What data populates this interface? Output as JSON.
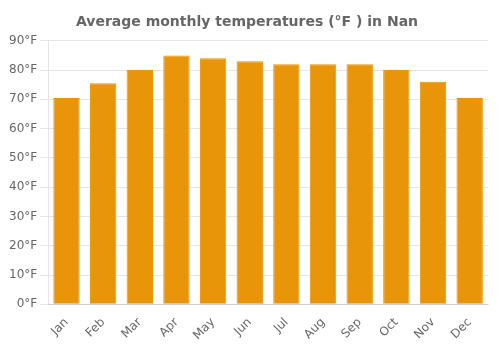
{
  "chart_data": {
    "type": "bar",
    "title": "Average monthly temperatures (°F ) in Nan",
    "categories": [
      "Jan",
      "Feb",
      "Mar",
      "Apr",
      "May",
      "Jun",
      "Jul",
      "Aug",
      "Sep",
      "Oct",
      "Nov",
      "Dec"
    ],
    "values": [
      70.5,
      75.5,
      80,
      85,
      84,
      83,
      82,
      82,
      82,
      80,
      76,
      70.5
    ],
    "color": "#E8950A",
    "ylim": [
      0,
      90
    ],
    "yticks": [
      {
        "value": 0,
        "label": "0°F"
      },
      {
        "value": 10,
        "label": "10°F"
      },
      {
        "value": 20,
        "label": "20°F"
      },
      {
        "value": 30,
        "label": "30°F"
      },
      {
        "value": 40,
        "label": "40°F"
      },
      {
        "value": 50,
        "label": "50°F"
      },
      {
        "value": 60,
        "label": "60°F"
      },
      {
        "value": 70,
        "label": "70°F"
      },
      {
        "value": 80,
        "label": "80°F"
      },
      {
        "value": 90,
        "label": "90°F"
      }
    ],
    "grid": true
  }
}
